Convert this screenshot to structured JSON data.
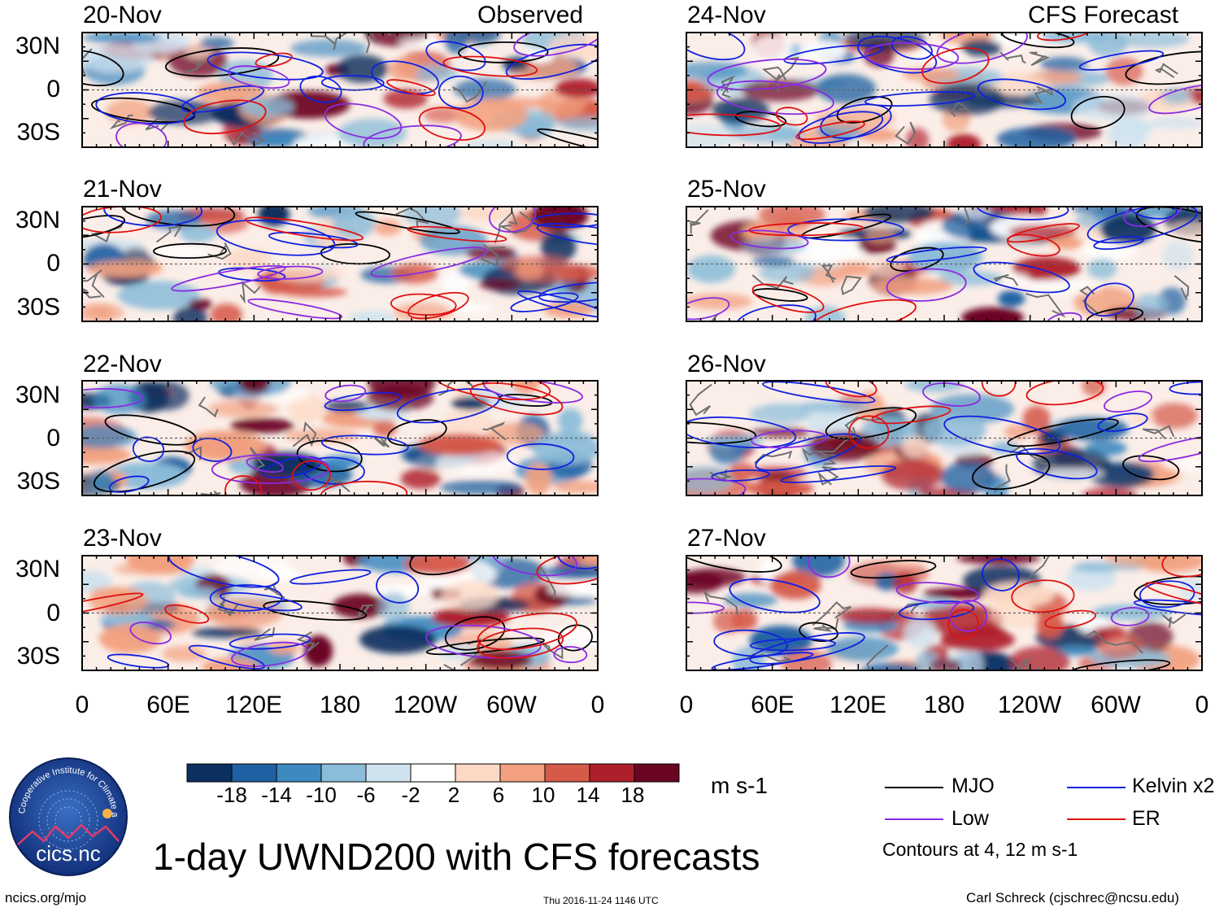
{
  "chart_data": {
    "type": "heatmap",
    "title": "1-day UWND200 with CFS forecasts",
    "variable": "UWND200",
    "units": "m s-1",
    "columns": [
      {
        "label": "Observed",
        "panels": [
          "20-Nov",
          "21-Nov",
          "22-Nov",
          "23-Nov"
        ]
      },
      {
        "label": "CFS Forecast",
        "panels": [
          "24-Nov",
          "25-Nov",
          "26-Nov",
          "27-Nov"
        ]
      }
    ],
    "x_ticks": [
      "0",
      "60E",
      "120E",
      "180",
      "120W",
      "60W",
      "0"
    ],
    "y_ticks": [
      "30N",
      "0",
      "30S"
    ],
    "colorbar": {
      "labels": [
        "-18",
        "-14",
        "-10",
        "-6",
        "-2",
        "2",
        "6",
        "10",
        "14",
        "18"
      ],
      "colors": [
        "#0b2f5e",
        "#1f62a3",
        "#3d8ac0",
        "#8bbcd9",
        "#cfe3ef",
        "#ffffff",
        "#fdd9c5",
        "#f2a07f",
        "#d65a4a",
        "#ae1f2c",
        "#6a0621"
      ]
    },
    "contours": {
      "legend": [
        {
          "name": "MJO",
          "color": "#000000"
        },
        {
          "name": "Kelvin x2",
          "color": "#1020e0"
        },
        {
          "name": "Low",
          "color": "#8a2be2"
        },
        {
          "name": "ER",
          "color": "#e01010"
        }
      ],
      "note": "Contours at 4, 12 m s-1"
    }
  },
  "logo": {
    "text": "cics.nc",
    "ring_text": "Cooperative Institute for Climate and Satellites"
  },
  "footer": {
    "left": "ncics.org/mjo",
    "center": "Thu 2016-11-24 1146 UTC",
    "right": "Carl Schreck (cjschrec@ncsu.edu)"
  }
}
